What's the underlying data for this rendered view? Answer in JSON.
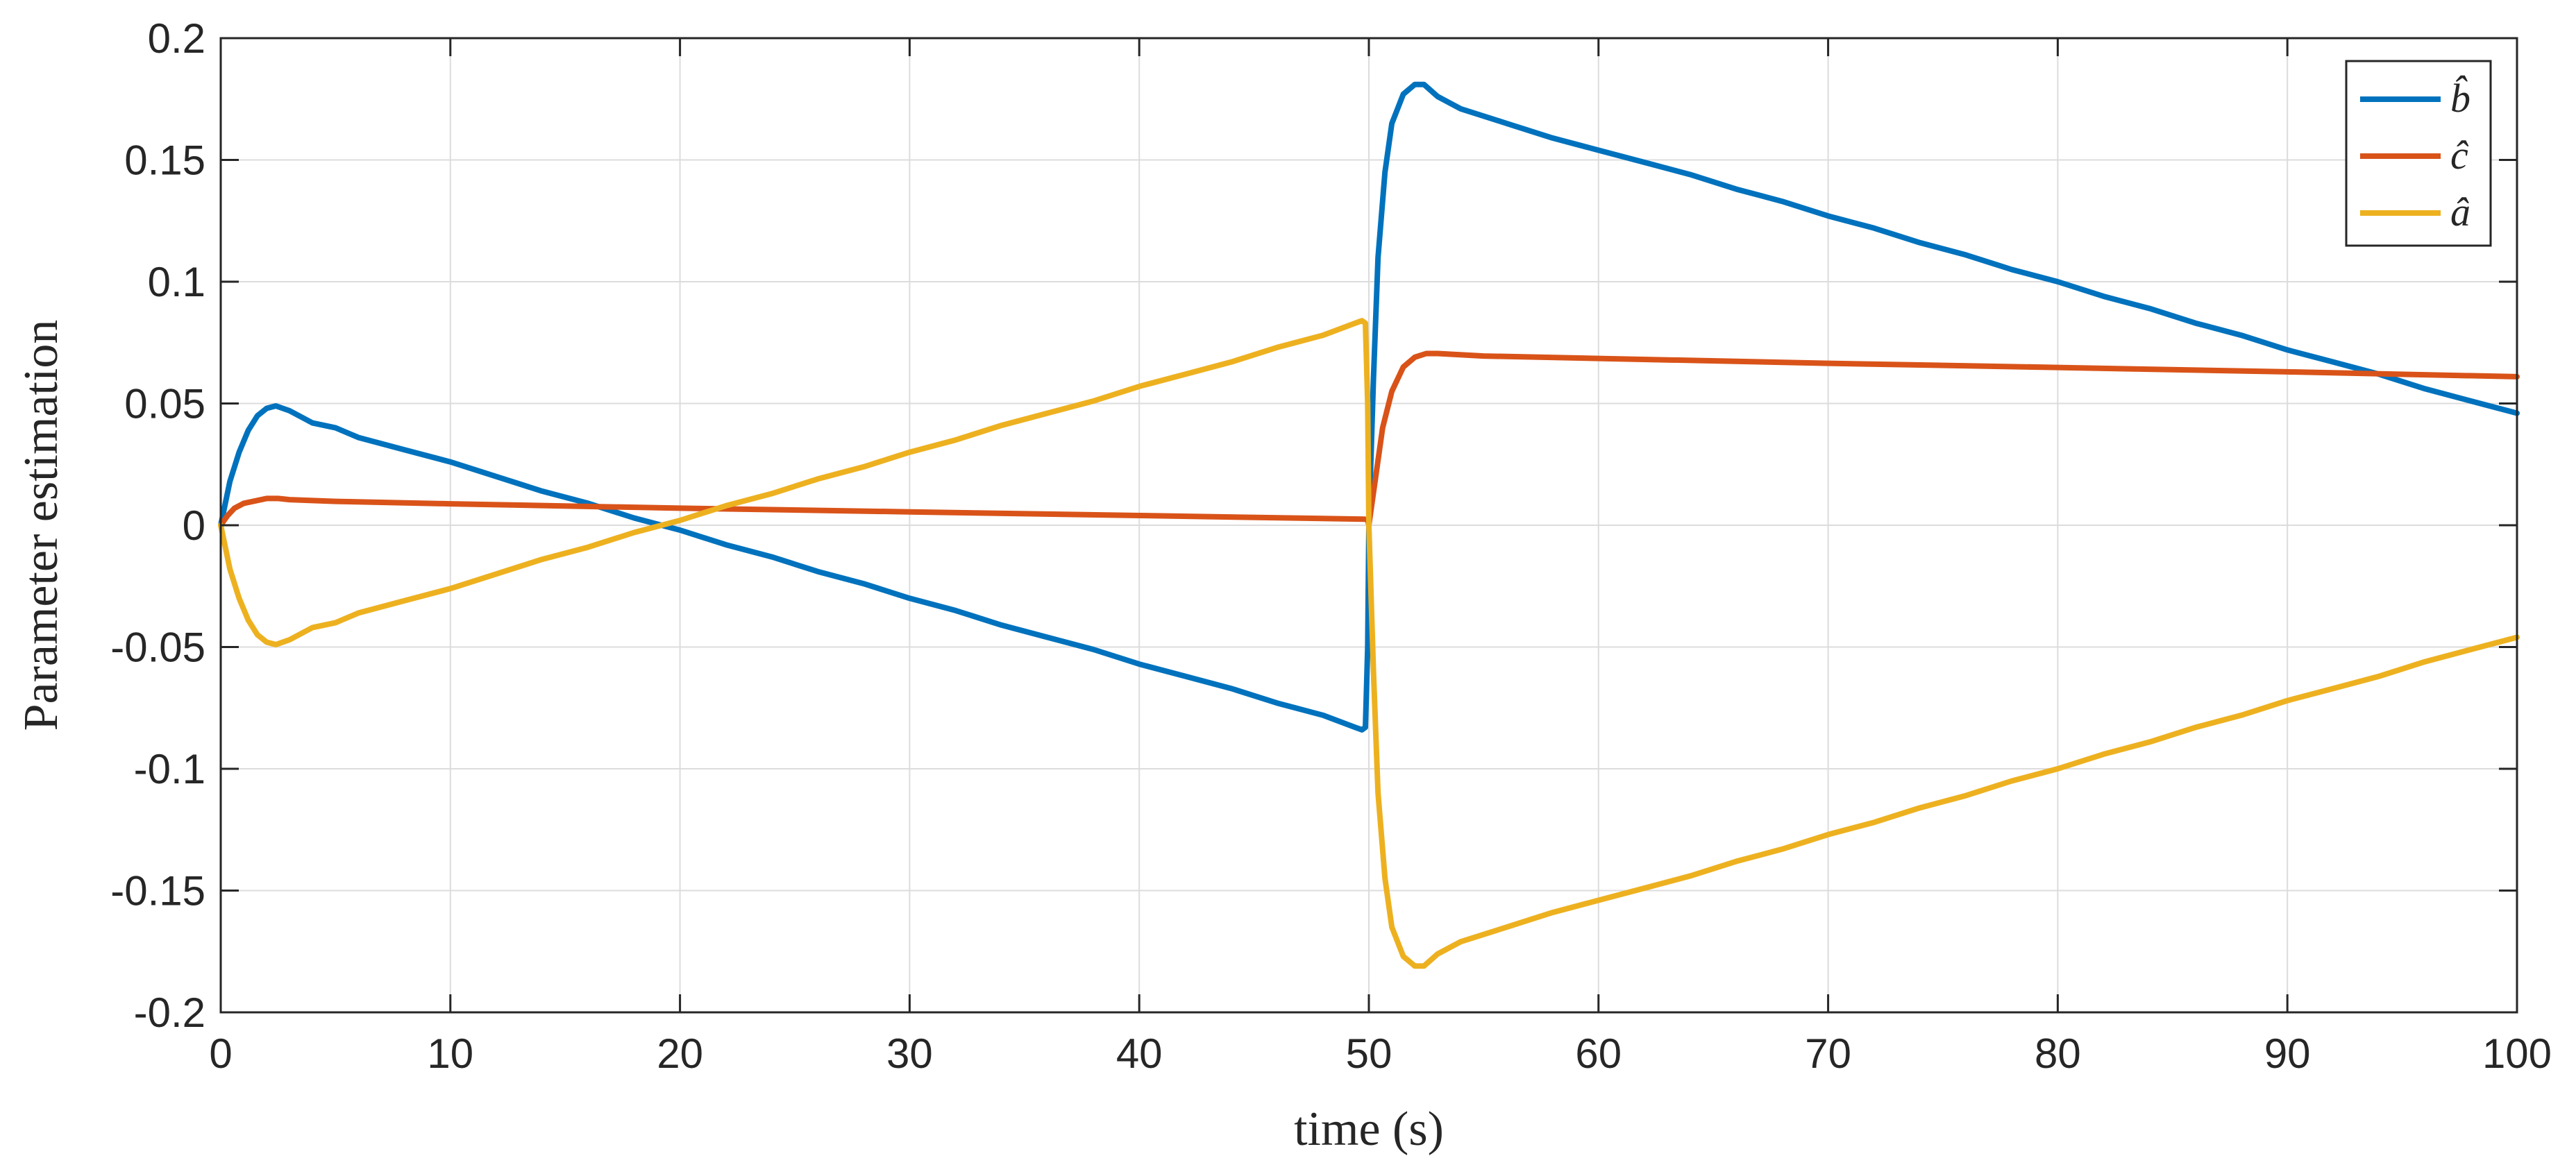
{
  "chart_data": {
    "type": "line",
    "title": "",
    "xlabel": "time (s)",
    "ylabel": "Parameter estimation",
    "xlim": [
      0,
      100
    ],
    "ylim": [
      -0.2,
      0.2
    ],
    "grid": true,
    "legend_position": "top-right",
    "xticks": [
      0,
      10,
      20,
      30,
      40,
      50,
      60,
      70,
      80,
      90,
      100
    ],
    "xtick_labels": [
      "0",
      "10",
      "20",
      "30",
      "40",
      "50",
      "60",
      "70",
      "80",
      "90",
      "100"
    ],
    "yticks": [
      -0.2,
      -0.15,
      -0.1,
      -0.05,
      0,
      0.05,
      0.1,
      0.15,
      0.2
    ],
    "ytick_labels": [
      "-0.2",
      "-0.15",
      "-0.1",
      "-0.05",
      "0",
      "0.05",
      "0.1",
      "0.15",
      "0.2"
    ],
    "series": [
      {
        "name": "b̂",
        "color": "#0072BD",
        "x": [
          0,
          0.4,
          0.8,
          1.2,
          1.6,
          2.0,
          2.4,
          3,
          4,
          5,
          6,
          8,
          10,
          12,
          14,
          16,
          18,
          20,
          22,
          24,
          26,
          28,
          30,
          32,
          34,
          36,
          38,
          40,
          42,
          44,
          46,
          48,
          49.4,
          49.7,
          49.85,
          49.95,
          50.0,
          50.2,
          50.4,
          50.7,
          51.0,
          51.5,
          52.0,
          52.4,
          53,
          54,
          56,
          58,
          60,
          62,
          64,
          66,
          68,
          70,
          72,
          74,
          76,
          78,
          80,
          82,
          84,
          86,
          88,
          90,
          92,
          94,
          96,
          98,
          100
        ],
        "y": [
          0,
          0.018,
          0.03,
          0.039,
          0.045,
          0.048,
          0.049,
          0.047,
          0.042,
          0.04,
          0.036,
          0.031,
          0.026,
          0.02,
          0.014,
          0.009,
          0.003,
          -0.002,
          -0.008,
          -0.013,
          -0.019,
          -0.024,
          -0.03,
          -0.035,
          -0.041,
          -0.046,
          -0.051,
          -0.057,
          -0.062,
          -0.067,
          -0.073,
          -0.078,
          -0.083,
          -0.084,
          -0.083,
          -0.05,
          0.0,
          0.06,
          0.11,
          0.145,
          0.165,
          0.177,
          0.181,
          0.181,
          0.176,
          0.171,
          0.165,
          0.159,
          0.154,
          0.149,
          0.144,
          0.138,
          0.133,
          0.127,
          0.122,
          0.116,
          0.111,
          0.105,
          0.1,
          0.094,
          0.089,
          0.083,
          0.078,
          0.072,
          0.067,
          0.062,
          0.056,
          0.051,
          0.046
        ]
      },
      {
        "name": "ĉ",
        "color": "#D95319",
        "x": [
          0,
          0.3,
          0.6,
          1.0,
          1.5,
          2.0,
          2.5,
          3,
          5,
          10,
          20,
          30,
          40,
          49.8,
          49.95,
          50.0,
          50.3,
          50.6,
          51.0,
          51.5,
          52.0,
          52.5,
          53,
          55,
          60,
          70,
          80,
          90,
          100
        ],
        "y": [
          0,
          0.004,
          0.007,
          0.009,
          0.01,
          0.011,
          0.011,
          0.0105,
          0.0098,
          0.0088,
          0.007,
          0.0055,
          0.004,
          0.0025,
          0.0022,
          0.0,
          0.02,
          0.04,
          0.055,
          0.065,
          0.069,
          0.0705,
          0.0705,
          0.0695,
          0.0685,
          0.0665,
          0.0648,
          0.063,
          0.061
        ]
      },
      {
        "name": "â",
        "color": "#EDB120",
        "x": [
          0,
          0.4,
          0.8,
          1.2,
          1.6,
          2.0,
          2.4,
          3,
          4,
          5,
          6,
          8,
          10,
          12,
          14,
          16,
          18,
          20,
          22,
          24,
          26,
          28,
          30,
          32,
          34,
          36,
          38,
          40,
          42,
          44,
          46,
          48,
          49.4,
          49.7,
          49.85,
          49.95,
          50.0,
          50.2,
          50.4,
          50.7,
          51.0,
          51.5,
          52.0,
          52.4,
          53,
          54,
          56,
          58,
          60,
          62,
          64,
          66,
          68,
          70,
          72,
          74,
          76,
          78,
          80,
          82,
          84,
          86,
          88,
          90,
          92,
          94,
          96,
          98,
          100
        ],
        "y": [
          0,
          -0.018,
          -0.03,
          -0.039,
          -0.045,
          -0.048,
          -0.049,
          -0.047,
          -0.042,
          -0.04,
          -0.036,
          -0.031,
          -0.026,
          -0.02,
          -0.014,
          -0.009,
          -0.003,
          0.002,
          0.008,
          0.013,
          0.019,
          0.024,
          0.03,
          0.035,
          0.041,
          0.046,
          0.051,
          0.057,
          0.062,
          0.067,
          0.073,
          0.078,
          0.083,
          0.084,
          0.083,
          0.05,
          0.0,
          -0.06,
          -0.11,
          -0.145,
          -0.165,
          -0.177,
          -0.181,
          -0.181,
          -0.176,
          -0.171,
          -0.165,
          -0.159,
          -0.154,
          -0.149,
          -0.144,
          -0.138,
          -0.133,
          -0.127,
          -0.122,
          -0.116,
          -0.111,
          -0.105,
          -0.1,
          -0.094,
          -0.089,
          -0.083,
          -0.078,
          -0.072,
          -0.067,
          -0.062,
          -0.056,
          -0.051,
          -0.046
        ]
      }
    ]
  }
}
